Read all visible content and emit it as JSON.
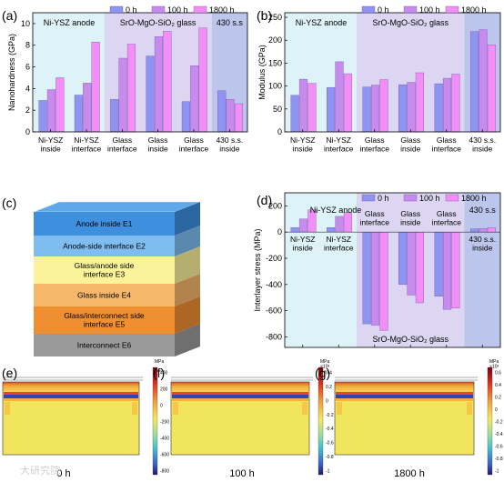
{
  "legend": [
    "0 h",
    "100 h",
    "1800 h"
  ],
  "series_colors": [
    "#8f93f2",
    "#c78bee",
    "#f28ef5"
  ],
  "region_colors": {
    "anode": "#def3f7",
    "glass": "#dcd6f2",
    "steel": "#bcc6ec"
  },
  "regions": [
    "Ni-YSZ anode",
    "SrO-MgO-SiO₂ glass",
    "430 s.s"
  ],
  "region_d_glass": "SrO-MgO-SiO₂ glass",
  "region_d_steel": "430 s.s",
  "chart_data": [
    {
      "panel": "(a)",
      "type": "bar",
      "ylabel": "Nanohardness (GPa)",
      "ylim": [
        0,
        11
      ],
      "yticks": [
        "0",
        "2",
        "4",
        "6",
        "8",
        "10"
      ],
      "ytick_values": [
        0,
        2,
        4,
        6,
        8,
        10
      ],
      "categories": [
        "Ni-YSZ\ninside",
        "Ni-YSZ\ninterface",
        "Glass\ninterface",
        "Glass\ninside",
        "Glass\ninterface",
        "430 s.s.\ninside"
      ],
      "series": [
        {
          "name": "0 h",
          "values": [
            2.9,
            3.4,
            3.0,
            7.0,
            2.8,
            3.8
          ]
        },
        {
          "name": "100 h",
          "values": [
            3.9,
            4.5,
            6.8,
            8.8,
            6.1,
            3.0
          ]
        },
        {
          "name": "1800 h",
          "values": [
            5.0,
            8.3,
            8.1,
            9.3,
            9.6,
            2.6
          ]
        }
      ]
    },
    {
      "panel": "(b)",
      "type": "bar",
      "ylabel": "Modulus (GPa)",
      "ylim": [
        0,
        260
      ],
      "yticks": [
        "0",
        "50",
        "100",
        "150",
        "200",
        "250"
      ],
      "ytick_values": [
        0,
        50,
        100,
        150,
        200,
        250
      ],
      "categories": [
        "Ni-YSZ\ninside",
        "Ni-YSZ\ninterface",
        "Glass\ninterface",
        "Glass\ninside",
        "Glass\ninterface",
        "430 s.s.\ninside"
      ],
      "series": [
        {
          "name": "0 h",
          "values": [
            80,
            97,
            98,
            103,
            105,
            219
          ]
        },
        {
          "name": "100 h",
          "values": [
            115,
            153,
            102,
            108,
            117,
            223
          ]
        },
        {
          "name": "1800 h",
          "values": [
            106,
            127,
            114,
            129,
            126,
            190
          ]
        }
      ]
    },
    {
      "panel": "(d)",
      "type": "bar",
      "ylabel": "Interlayer stress (MPa)",
      "ylim": [
        -880,
        300
      ],
      "yticks": [
        "200",
        "0",
        "-200",
        "-400",
        "-600",
        "-800"
      ],
      "ytick_values": [
        200,
        0,
        -200,
        -400,
        -600,
        -800
      ],
      "categories": [
        "Ni-YSZ\ninside",
        "Ni-YSZ\ninterface",
        "Glass\ninterface",
        "Glass\ninside",
        "Glass\ninterface",
        "430 s.s.\ninside"
      ],
      "series": [
        {
          "name": "0 h",
          "values": [
            35,
            35,
            -700,
            -400,
            -490,
            25
          ]
        },
        {
          "name": "100 h",
          "values": [
            100,
            120,
            -710,
            -480,
            -590,
            28
          ]
        },
        {
          "name": "1800 h",
          "values": [
            170,
            150,
            -750,
            -540,
            -580,
            35
          ]
        }
      ]
    }
  ],
  "block": {
    "panel": "(c)",
    "layers": [
      {
        "label": "Anode inside  E1",
        "color": "#3f8fdf"
      },
      {
        "label": "Anode-side interface  E2",
        "color": "#7fbdf0"
      },
      {
        "label": "Glass/anode side\ninterface  E3",
        "color": "#fbf39a"
      },
      {
        "label": "Glass inside  E4",
        "color": "#f7b86b"
      },
      {
        "label": "Glass/interconnect side\ninterface  E5",
        "color": "#f08f32"
      },
      {
        "label": "Interconnect  E6",
        "color": "#9a9a9a"
      }
    ]
  },
  "stress_maps": [
    {
      "panel": "(e)",
      "time": "0 h",
      "unit": "MPa",
      "ticks": [
        "400",
        "200",
        "0",
        "-200",
        "-400",
        "-600",
        "-800"
      ]
    },
    {
      "panel": "(f)",
      "time": "100 h",
      "unit": "MPa\n×10³",
      "ticks": [
        "0.4",
        "0.2",
        "0",
        "-0.2",
        "-0.4",
        "-0.6",
        "-0.8",
        "-1"
      ]
    },
    {
      "panel": "(g)",
      "time": "1800 h",
      "unit": "MPa\n×10³",
      "ticks": [
        "0.6",
        "0.4",
        "0.2",
        "0",
        "-0.2",
        "-0.4",
        "-0.6",
        "-0.8",
        "-1"
      ]
    }
  ],
  "watermark": "大研究院"
}
